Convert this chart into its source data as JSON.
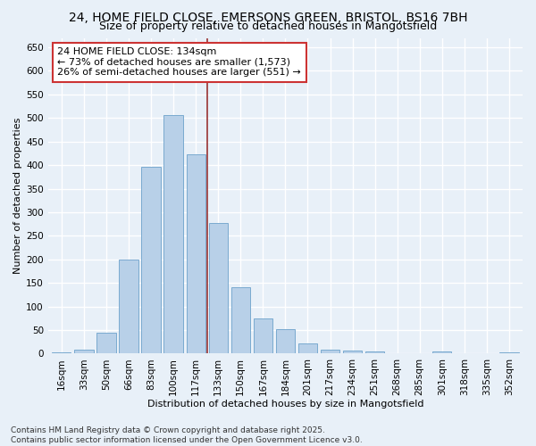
{
  "title": "24, HOME FIELD CLOSE, EMERSONS GREEN, BRISTOL, BS16 7BH",
  "subtitle": "Size of property relative to detached houses in Mangotsfield",
  "xlabel": "Distribution of detached houses by size in Mangotsfield",
  "ylabel": "Number of detached properties",
  "bar_color": "#b8d0e8",
  "bar_edge_color": "#7aaad0",
  "background_color": "#e8f0f8",
  "grid_color": "#ffffff",
  "categories": [
    "16sqm",
    "33sqm",
    "50sqm",
    "66sqm",
    "83sqm",
    "100sqm",
    "117sqm",
    "133sqm",
    "150sqm",
    "167sqm",
    "184sqm",
    "201sqm",
    "217sqm",
    "234sqm",
    "251sqm",
    "268sqm",
    "285sqm",
    "301sqm",
    "318sqm",
    "335sqm",
    "352sqm"
  ],
  "values": [
    3,
    8,
    45,
    200,
    397,
    507,
    422,
    278,
    140,
    75,
    52,
    22,
    9,
    7,
    5,
    0,
    0,
    5,
    0,
    0,
    2
  ],
  "ylim": [
    0,
    670
  ],
  "yticks": [
    0,
    50,
    100,
    150,
    200,
    250,
    300,
    350,
    400,
    450,
    500,
    550,
    600,
    650
  ],
  "vline_x": 6.5,
  "vline_color": "#993333",
  "annotation_text": "24 HOME FIELD CLOSE: 134sqm\n← 73% of detached houses are smaller (1,573)\n26% of semi-detached houses are larger (551) →",
  "annotation_box_color": "#ffffff",
  "annotation_box_edge_color": "#cc3333",
  "footer_text": "Contains HM Land Registry data © Crown copyright and database right 2025.\nContains public sector information licensed under the Open Government Licence v3.0.",
  "title_fontsize": 10,
  "subtitle_fontsize": 9,
  "annotation_fontsize": 8,
  "footer_fontsize": 6.5,
  "axis_label_fontsize": 8,
  "tick_fontsize": 7.5
}
